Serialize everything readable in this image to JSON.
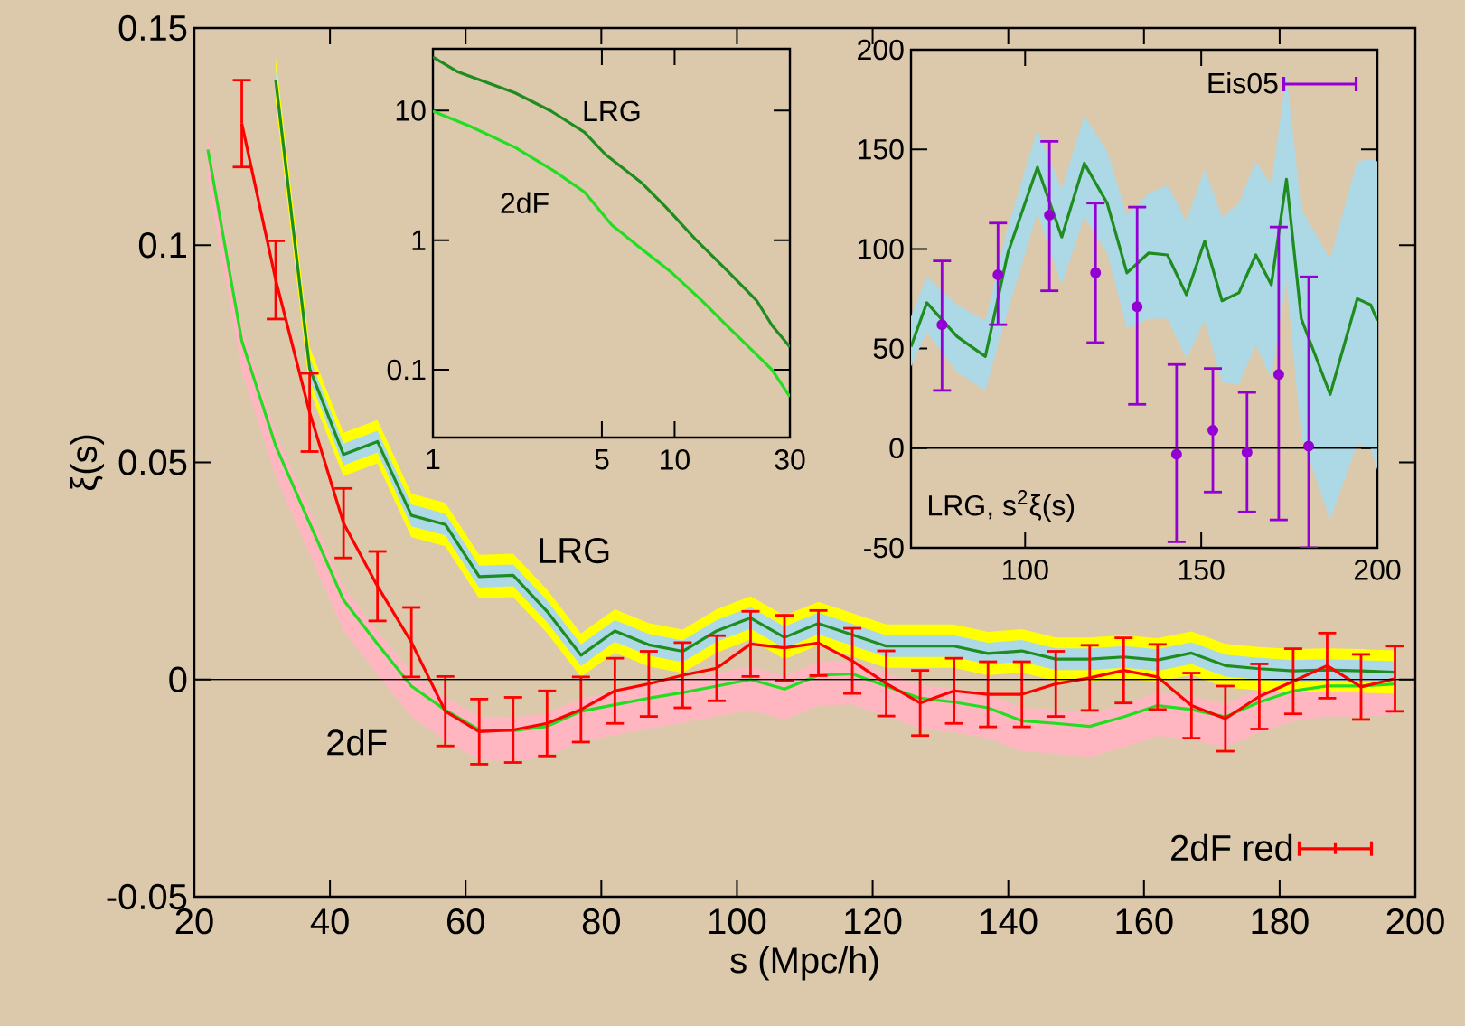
{
  "chart_data": [
    {
      "type": "line",
      "xlabel": "s (Mpc/h)",
      "ylabel": "ξ(s)",
      "xlim": [
        20,
        200
      ],
      "ylim": [
        -0.05,
        0.15
      ],
      "xticks": [
        20,
        40,
        60,
        80,
        100,
        120,
        140,
        160,
        180,
        200
      ],
      "yticks": [
        -0.05,
        0,
        0.05,
        0.1,
        0.15
      ],
      "legend": "bottom right",
      "ref_lines": [
        {
          "axis": "y",
          "value": 0,
          "color": "#000000"
        }
      ],
      "annotations": [
        "LRG",
        "2dF"
      ],
      "series": [
        {
          "color": "#ffb6c1",
          "x": [
            22,
            27,
            32,
            37,
            42,
            47,
            52,
            57,
            62,
            67,
            72,
            77,
            82,
            87,
            92,
            97,
            102,
            107,
            112,
            117,
            122,
            127,
            132,
            137,
            142,
            147,
            152,
            157,
            162,
            167,
            172,
            177,
            182,
            187,
            192,
            197
          ],
          "values": [
            null,
            null,
            null,
            null,
            null,
            null,
            null,
            null,
            null,
            null,
            null,
            null,
            null,
            null,
            null,
            null,
            null,
            null,
            null,
            null,
            null,
            null,
            null,
            null,
            null,
            null,
            null,
            null,
            null,
            null,
            null,
            null,
            null,
            null,
            null,
            null
          ],
          "lower": [
            0.115,
            0.071,
            0.0468,
            0.029,
            0.0113,
            0.0012,
            -0.0085,
            -0.014,
            -0.0186,
            -0.0188,
            -0.0178,
            -0.0143,
            -0.0128,
            -0.0113,
            -0.01,
            -0.0085,
            -0.007,
            -0.0092,
            -0.006,
            -0.0057,
            -0.0085,
            -0.0113,
            -0.0122,
            -0.0135,
            -0.0165,
            -0.0171,
            -0.0178,
            -0.0156,
            -0.013,
            -0.0139,
            -0.0156,
            -0.0122,
            -0.0096,
            -0.0085,
            -0.0085,
            -0.008
          ],
          "upper": [
            0.125,
            0.081,
            0.0568,
            0.039,
            0.0213,
            0.0112,
            0.0015,
            -0.004,
            -0.0086,
            -0.0088,
            -0.0078,
            -0.0043,
            -0.0028,
            -0.0013,
            0,
            0.0015,
            0.003,
            0.0008,
            0.004,
            0.0043,
            0.0015,
            -0.0013,
            -0.0022,
            -0.0035,
            -0.0065,
            -0.0071,
            -0.0078,
            -0.0056,
            -0.003,
            -0.0039,
            -0.0056,
            -0.0022,
            0.0004,
            0.0015,
            0.0015,
            0.002
          ]
        },
        {
          "color": "#ffff00",
          "x": [
            32,
            37,
            42,
            47,
            52,
            57,
            62,
            67,
            72,
            77,
            82,
            87,
            92,
            97,
            102,
            107,
            112,
            117,
            122,
            127,
            132,
            137,
            142,
            147,
            152,
            157,
            162,
            167,
            172,
            177,
            182,
            187,
            192,
            197
          ],
          "values": [
            null,
            null,
            null,
            null,
            null,
            null,
            null,
            null,
            null,
            null,
            null,
            null,
            null,
            null,
            null,
            null,
            null,
            null,
            null,
            null,
            null,
            null,
            null,
            null,
            null,
            null,
            null,
            null,
            null,
            null,
            null,
            null,
            null,
            null
          ],
          "lower": [
            0.133,
            0.0666,
            0.0468,
            0.0498,
            0.0328,
            0.0307,
            0.0187,
            0.019,
            0.0107,
            0.0006,
            0.0062,
            0.003,
            0.0015,
            0.0062,
            0.0092,
            0.0047,
            0.0079,
            0.0053,
            0.0027,
            0.0027,
            0.0027,
            0.001,
            0.0016,
            -0.0003,
            -0.0003,
            0.0002,
            -0.0005,
            0.0011,
            -0.0018,
            -0.0025,
            -0.003,
            -0.0028,
            -0.003,
            -0.0033
          ],
          "upper": [
            0.143,
            0.0766,
            0.0568,
            0.0598,
            0.0428,
            0.0407,
            0.0287,
            0.029,
            0.0207,
            0.0106,
            0.0162,
            0.013,
            0.0115,
            0.0162,
            0.0192,
            0.0147,
            0.0179,
            0.0153,
            0.0127,
            0.0127,
            0.0127,
            0.011,
            0.0116,
            0.0097,
            0.0097,
            0.0102,
            0.0095,
            0.0111,
            0.0082,
            0.0075,
            0.007,
            0.0072,
            0.007,
            0.0067
          ]
        },
        {
          "color": "#add8e6",
          "x": [
            32,
            37,
            42,
            47,
            52,
            57,
            62,
            67,
            72,
            77,
            82,
            87,
            92,
            97,
            102,
            107,
            112,
            117,
            122,
            127,
            132,
            137,
            142,
            147,
            152,
            157,
            162,
            167,
            172,
            177,
            182,
            187,
            192,
            197
          ],
          "values": [
            null,
            null,
            null,
            null,
            null,
            null,
            null,
            null,
            null,
            null,
            null,
            null,
            null,
            null,
            null,
            null,
            null,
            null,
            null,
            null,
            null,
            null,
            null,
            null,
            null,
            null,
            null,
            null,
            null,
            null,
            null,
            null,
            null,
            null
          ],
          "lower": [
            0.1355,
            0.0691,
            0.0493,
            0.0523,
            0.0353,
            0.0332,
            0.0212,
            0.0215,
            0.0132,
            0.0031,
            0.0087,
            0.0055,
            0.004,
            0.0087,
            0.0117,
            0.0072,
            0.0104,
            0.0078,
            0.0052,
            0.0052,
            0.0052,
            0.0035,
            0.0041,
            0.0022,
            0.0022,
            0.0027,
            0.002,
            0.0036,
            0.0007,
            0,
            -0.0005,
            -0.0003,
            -0.0005,
            -0.0008
          ],
          "upper": [
            0.1405,
            0.0741,
            0.0543,
            0.0573,
            0.0403,
            0.0382,
            0.0262,
            0.0265,
            0.0182,
            0.0081,
            0.0137,
            0.0105,
            0.009,
            0.0137,
            0.0167,
            0.0122,
            0.0154,
            0.0128,
            0.0102,
            0.0102,
            0.0102,
            0.0085,
            0.0091,
            0.0072,
            0.0072,
            0.0077,
            0.007,
            0.0086,
            0.0057,
            0.005,
            0.0045,
            0.0047,
            0.0045,
            0.0042
          ]
        },
        {
          "color": "#22dd22",
          "x": [
            22,
            27,
            32,
            37,
            42,
            47,
            52,
            57,
            62,
            67,
            72,
            77,
            82,
            87,
            92,
            97,
            102,
            107,
            112,
            117,
            122,
            127,
            132,
            137,
            142,
            147,
            152,
            157,
            162,
            167,
            172,
            177,
            182,
            187,
            192,
            197
          ],
          "values": [
            0.122,
            0.078,
            0.0538,
            0.036,
            0.0183,
            0.0082,
            -0.0015,
            -0.007,
            -0.0116,
            -0.0118,
            -0.0108,
            -0.0073,
            -0.0058,
            -0.0043,
            -0.003,
            -0.0015,
            0,
            -0.0022,
            0.001,
            0.0013,
            -0.0015,
            -0.0043,
            -0.0052,
            -0.0065,
            -0.0095,
            -0.0101,
            -0.0108,
            -0.0086,
            -0.006,
            -0.0069,
            -0.0086,
            -0.0052,
            -0.0026,
            -0.0015,
            -0.0015,
            -0.001
          ]
        },
        {
          "color": "#1e8c1e",
          "x": [
            32,
            37,
            42,
            47,
            52,
            57,
            62,
            67,
            72,
            77,
            82,
            87,
            92,
            97,
            102,
            107,
            112,
            117,
            122,
            127,
            132,
            137,
            142,
            147,
            152,
            157,
            162,
            167,
            172,
            177,
            182,
            187,
            192,
            197
          ],
          "values": [
            0.138,
            0.0716,
            0.0518,
            0.0548,
            0.0378,
            0.0357,
            0.0237,
            0.024,
            0.0157,
            0.0056,
            0.0112,
            0.008,
            0.0065,
            0.0112,
            0.0142,
            0.0097,
            0.0129,
            0.0103,
            0.0077,
            0.0077,
            0.0077,
            0.006,
            0.0066,
            0.0047,
            0.0047,
            0.0052,
            0.0045,
            0.0061,
            0.0032,
            0.0025,
            0.002,
            0.0022,
            0.002,
            0.0017
          ]
        },
        {
          "name": "2dF red",
          "color": "#ff0000",
          "x": [
            27,
            32,
            37,
            42,
            47,
            52,
            57,
            62,
            67,
            72,
            77,
            82,
            87,
            92,
            97,
            102,
            107,
            112,
            117,
            122,
            127,
            132,
            137,
            142,
            147,
            152,
            157,
            162,
            167,
            172,
            177,
            182,
            187,
            192,
            197
          ],
          "values": [
            0.128,
            0.092,
            0.0615,
            0.036,
            0.0215,
            0.0086,
            -0.0073,
            -0.012,
            -0.0116,
            -0.0101,
            -0.0069,
            -0.0026,
            -0.001,
            0.001,
            0.0026,
            0.0082,
            0.0073,
            0.0084,
            0.0043,
            -0.0009,
            -0.0054,
            -0.0026,
            -0.0034,
            -0.0034,
            -0.001,
            0.0004,
            0.0021,
            0.0006,
            -0.006,
            -0.009,
            -0.0039,
            -0.0004,
            0.0032,
            -0.0017,
            0.0002
          ],
          "errors": [
            0.01,
            0.009,
            0.009,
            0.008,
            0.008,
            0.008,
            0.008,
            0.0075,
            0.0075,
            0.0075,
            0.0075,
            0.0075,
            0.0075,
            0.0075,
            0.0075,
            0.0075,
            0.0075,
            0.0075,
            0.0075,
            0.0075,
            0.0075,
            0.0075,
            0.0075,
            0.0075,
            0.0075,
            0.0075,
            0.0075,
            0.0075,
            0.0075,
            0.0075,
            0.0075,
            0.0075,
            0.0075,
            0.0075,
            0.0075
          ]
        }
      ]
    },
    {
      "type": "line",
      "log": "xy",
      "xlim": [
        1,
        30
      ],
      "ylim": [
        0.03,
        30
      ],
      "xticks": [
        1,
        5,
        10,
        30
      ],
      "yticks": [
        0.1,
        1,
        10
      ],
      "annotations": [
        "LRG",
        "2dF"
      ],
      "series": [
        {
          "color": "#22dd22",
          "x": [
            1,
            1.42,
            2.19,
            3.18,
            4.24,
            5.5,
            7.33,
            9.75,
            13,
            16.4,
            21.9,
            25.3,
            30
          ],
          "values": [
            9.9,
            7.6,
            5.2,
            3.41,
            2.35,
            1.31,
            0.85,
            0.56,
            0.34,
            0.22,
            0.13,
            0.1,
            0.062
          ]
        },
        {
          "color": "#1e8c1e",
          "x": [
            1,
            1.27,
            2.19,
            3.09,
            4.24,
            5.18,
            7.33,
            9.2,
            12.3,
            16.4,
            18.9,
            21.9,
            25.3,
            30
          ],
          "values": [
            25.9,
            19.9,
            13.7,
            9.9,
            6.8,
            4.58,
            2.76,
            1.8,
            1,
            0.59,
            0.45,
            0.34,
            0.22,
            0.15
          ]
        }
      ]
    },
    {
      "type": "line",
      "xlim": [
        67.6,
        200
      ],
      "ylim": [
        -50,
        200
      ],
      "xticks": [
        100,
        150,
        200
      ],
      "yticks": [
        -50,
        0,
        50,
        100,
        150,
        200
      ],
      "legend": "top right",
      "ref_lines": [
        {
          "axis": "y",
          "value": 0,
          "color": "#000000"
        }
      ],
      "annotations": [
        "LRG, s$^{2}$ξ(s)"
      ],
      "series": [
        {
          "color": "#add8e6",
          "x": [
            67.6,
            72.1,
            80.7,
            88.7,
            95.1,
            103.5,
            110.4,
            116.8,
            123.3,
            128.9,
            135.1,
            140.4,
            145.8,
            151,
            155.9,
            160.7,
            165.5,
            169.9,
            174.2,
            178.4,
            186.6,
            194.3,
            198.1,
            200
          ],
          "values": [
            null,
            null,
            null,
            null,
            null,
            null,
            null,
            null,
            null,
            null,
            null,
            null,
            null,
            null,
            null,
            null,
            null,
            null,
            null,
            null,
            null,
            null,
            null,
            null
          ],
          "lower": [
            41,
            58,
            38,
            29,
            69,
            118,
            82,
            116,
            98,
            60,
            65,
            65,
            45,
            64,
            33,
            32,
            52,
            35,
            84,
            6,
            -36,
            2,
            0,
            -11
          ],
          "upper": [
            66,
            86,
            72,
            64,
            111,
            160,
            130,
            167,
            149,
            117,
            128,
            132,
            114,
            140,
            116,
            123,
            144,
            132,
            188,
            120,
            95,
            144,
            145,
            144
          ]
        },
        {
          "color": "#1e8c1e",
          "x": [
            67.6,
            72.1,
            80.7,
            88.7,
            95.1,
            103.5,
            110.4,
            116.8,
            123.3,
            128.9,
            135.1,
            140.4,
            145.8,
            151,
            155.9,
            160.7,
            165.5,
            169.9,
            174.2,
            178.4,
            186.6,
            194.3,
            198.1,
            200
          ],
          "values": [
            51,
            73,
            56,
            46,
            98,
            141,
            106,
            143,
            123,
            88,
            98,
            97,
            77,
            104,
            74,
            78,
            97,
            82,
            135,
            65,
            27,
            75,
            72,
            64
          ]
        },
        {
          "type": "scatter",
          "name": "Eis05",
          "color": "#9400d3",
          "marker": "circle",
          "x": [
            76.4,
            92.3,
            106.9,
            120,
            131.8,
            143,
            153.3,
            163,
            172,
            180.5
          ],
          "values": [
            62,
            87,
            117,
            88,
            71,
            -3,
            9,
            -2,
            37,
            1
          ],
          "errors": [
            [
              29,
              94
            ],
            [
              62,
              113
            ],
            [
              79,
              154
            ],
            [
              53,
              123
            ],
            [
              22,
              121
            ],
            [
              -47,
              42
            ],
            [
              -22,
              40
            ],
            [
              -32,
              28
            ],
            [
              -36,
              111
            ],
            [
              -50,
              86
            ]
          ]
        }
      ]
    }
  ]
}
